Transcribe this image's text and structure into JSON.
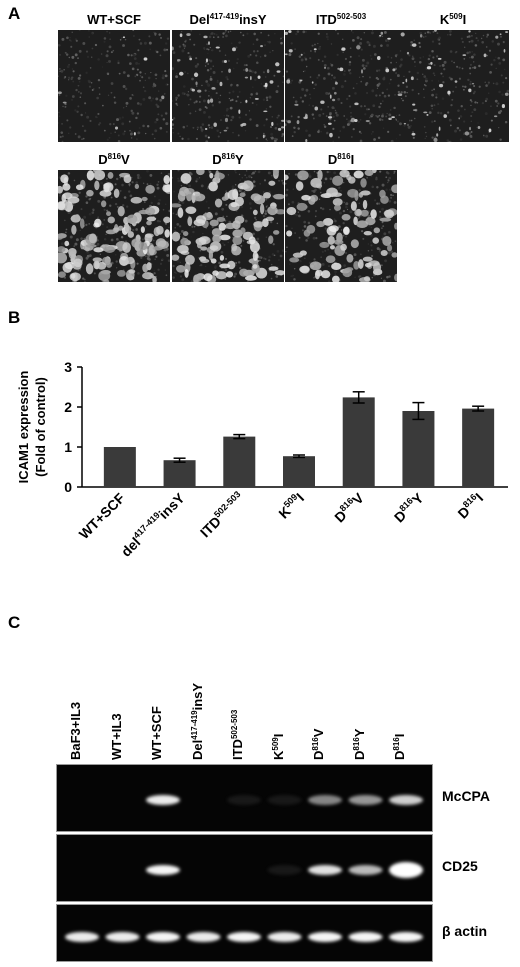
{
  "panels": {
    "a": "A",
    "b": "B",
    "c": "C"
  },
  "micrographs": [
    {
      "base": "WT+SCF",
      "sup": "",
      "suffix": "",
      "density": 0.05
    },
    {
      "base": "Del",
      "sup": "417-419",
      "suffix": "insY",
      "density": 0.35
    },
    {
      "base": "ITD",
      "sup": "502-503",
      "suffix": "",
      "density": 0.3
    },
    {
      "base": "K",
      "sup": "509",
      "suffix": "I",
      "density": 0.3
    },
    {
      "base": "D",
      "sup": "816",
      "suffix": "V",
      "density": 1.0
    },
    {
      "base": "D",
      "sup": "816",
      "suffix": "Y",
      "density": 0.85
    },
    {
      "base": "D",
      "sup": "816",
      "suffix": "I",
      "density": 0.7
    }
  ],
  "chart_data": {
    "type": "bar",
    "ylabel_line1": "ICAM1 expression",
    "ylabel_line2": "(Fold of control)",
    "ylim": [
      0,
      3
    ],
    "yticks": [
      "0",
      "1",
      "2",
      "3"
    ],
    "categories": [
      {
        "base": "WT+SCF",
        "sup": "",
        "suffix": ""
      },
      {
        "base": "del",
        "sup": "417-419",
        "suffix": "insY"
      },
      {
        "base": "ITD",
        "sup": "502-503",
        "suffix": ""
      },
      {
        "base": "K",
        "sup": "509",
        "suffix": "I"
      },
      {
        "base": "D",
        "sup": "816",
        "suffix": "V"
      },
      {
        "base": "D",
        "sup": "816",
        "suffix": "Y"
      },
      {
        "base": "D",
        "sup": "816",
        "suffix": "I"
      }
    ],
    "values": [
      1.0,
      0.67,
      1.26,
      0.77,
      2.24,
      1.9,
      1.96
    ],
    "errors": [
      0.0,
      0.05,
      0.05,
      0.03,
      0.14,
      0.21,
      0.06
    ],
    "bar_color": "#3a3a3a"
  },
  "gel": {
    "lanes": [
      {
        "base": "BaF3+IL3",
        "sup": "",
        "suffix": ""
      },
      {
        "base": "WT+IL3",
        "sup": "",
        "suffix": ""
      },
      {
        "base": "WT+SCF",
        "sup": "",
        "suffix": ""
      },
      {
        "base": "Del",
        "sup": "417-419",
        "suffix": "insY"
      },
      {
        "base": "ITD",
        "sup": "502-503",
        "suffix": ""
      },
      {
        "base": "K",
        "sup": "509",
        "suffix": "I"
      },
      {
        "base": "D",
        "sup": "816",
        "suffix": "V"
      },
      {
        "base": "D",
        "sup": "816",
        "suffix": "Y"
      },
      {
        "base": "D",
        "sup": "816",
        "suffix": "I"
      }
    ],
    "rows": [
      {
        "label": "McCPA",
        "intensity": [
          0,
          0,
          0.9,
          0,
          0.05,
          0.05,
          0.55,
          0.6,
          0.75
        ]
      },
      {
        "label": "CD25",
        "intensity": [
          0,
          0,
          0.95,
          0,
          0,
          0.05,
          0.85,
          0.7,
          1.0
        ]
      },
      {
        "label": "β actin",
        "intensity": [
          0.9,
          0.9,
          0.95,
          0.9,
          0.95,
          0.9,
          0.95,
          0.95,
          0.95
        ]
      }
    ]
  }
}
